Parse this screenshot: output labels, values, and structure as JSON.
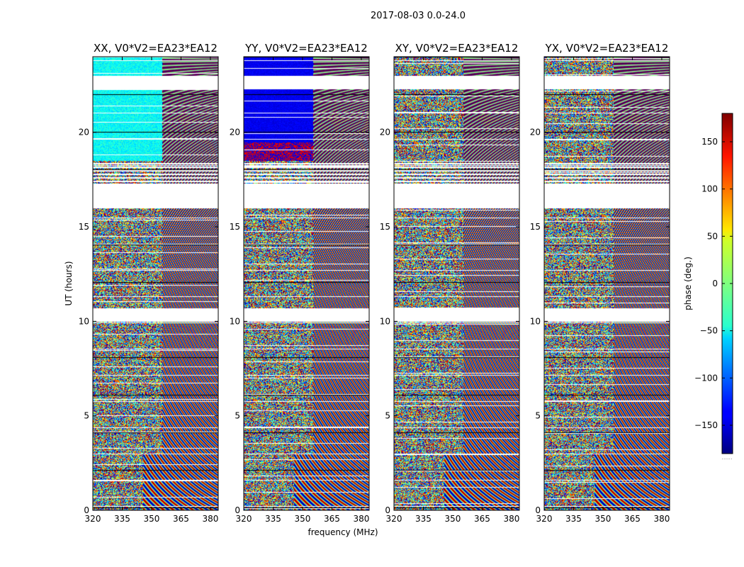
{
  "chart_data": {
    "type": "heatmap",
    "suptitle": "2017-08-03 0.0-24.0",
    "xlabel": "frequency (MHz)",
    "ylabel": "UT (hours)",
    "xlim": [
      320,
      384
    ],
    "ylim": [
      0,
      24
    ],
    "x_ticks": [
      "320",
      "335",
      "350",
      "365",
      "380"
    ],
    "y_ticks": [
      "0",
      "5",
      "10",
      "15",
      "20"
    ],
    "panels": [
      {
        "title": "XX, V0*V2=EA23*EA12",
        "product": "XX"
      },
      {
        "title": "YY, V0*V2=EA23*EA12",
        "product": "YY"
      },
      {
        "title": "XY, V0*V2=EA23*EA12",
        "product": "XY"
      },
      {
        "title": "YX, V0*V2=EA23*EA12",
        "product": "YX"
      }
    ],
    "colorbar": {
      "label": "phase (deg.)",
      "range": [
        -180,
        180
      ],
      "ticks": [
        "150",
        "100",
        "50",
        "0",
        "−50",
        "−100",
        "−150"
      ],
      "colormap": "jet",
      "bottom_text": "......"
    },
    "data_gaps_ut": [
      [
        22.3,
        23.0
      ],
      [
        16.0,
        17.3
      ],
      [
        10.0,
        10.7
      ]
    ],
    "colors": {
      "jet_low": "#00007f",
      "jet_mid": "#7fff7f",
      "jet_high": "#7f0000"
    }
  }
}
